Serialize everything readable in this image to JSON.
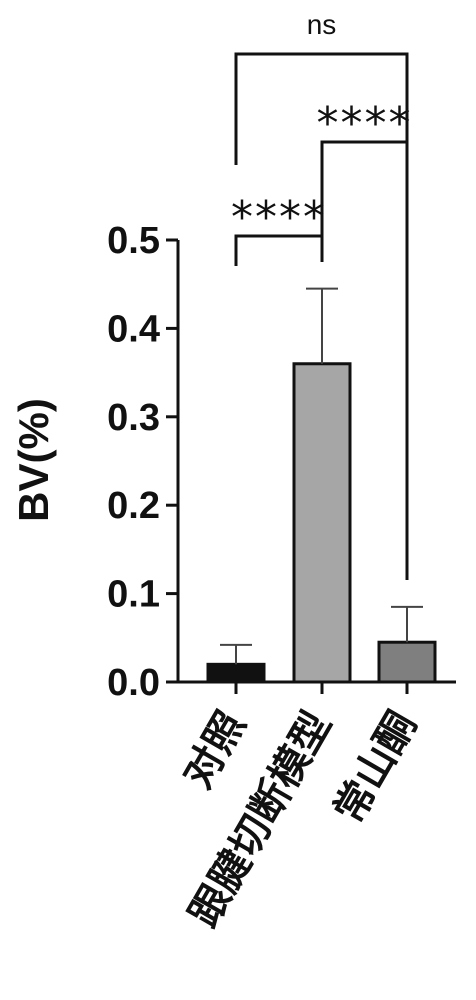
{
  "chart_data": {
    "type": "bar",
    "title": "",
    "xlabel": "",
    "ylabel": "BV(%)",
    "ylim": [
      0,
      0.5
    ],
    "yticks": [
      "0.0",
      "0.1",
      "0.2",
      "0.3",
      "0.4",
      "0.5"
    ],
    "categories": [
      "对照",
      "跟腱切断模型",
      "常山酮"
    ],
    "values": [
      0.02,
      0.36,
      0.045
    ],
    "errors": [
      0.022,
      0.085,
      0.04
    ],
    "bar_colors": [
      "#111111",
      "#a6a6a6",
      "#7f7f7f"
    ],
    "grid": false,
    "significance": [
      {
        "from": 0,
        "to": 1,
        "label": "****"
      },
      {
        "from": 1,
        "to": 2,
        "label": "****"
      },
      {
        "from": 0,
        "to": 2,
        "label": "ns"
      }
    ]
  }
}
